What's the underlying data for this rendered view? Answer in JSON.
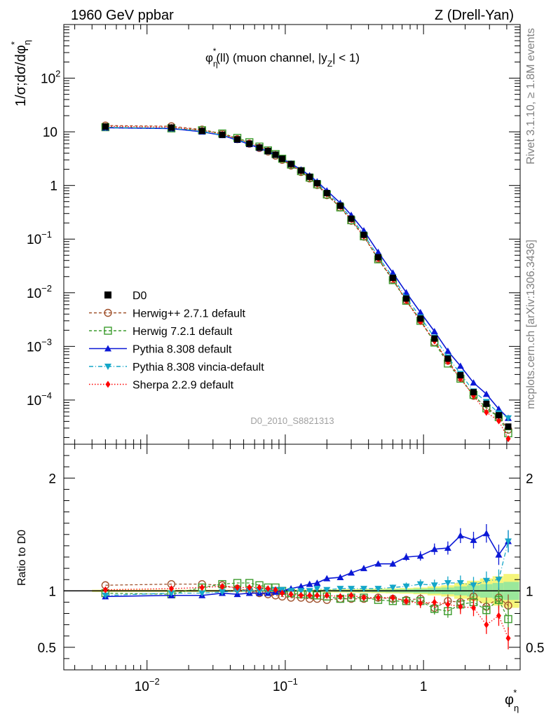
{
  "header": {
    "left": "1960 GeV ppbar",
    "right": "Z (Drell-Yan)"
  },
  "side_labels": {
    "rivet": "Rivet 3.1.10, ≥ 1.8M events",
    "mcplots": "mcplots.cern.ch [arXiv:1306.3436]"
  },
  "analysis_id": "D0_2010_S8821313",
  "chart_data": [
    {
      "type": "scatter",
      "panel": "main",
      "title": "φ*η(ll) (muon channel, |yZ| < 1)",
      "title_parts": {
        "phi": "φ",
        "sup": "*",
        "sub": "η",
        "rest": "(ll) (muon channel, |y",
        "zsub": "Z",
        "end": "| < 1)"
      },
      "ylabel": "1/σ;dσ/dφ*η",
      "ylabel_parts": {
        "main": "1/σ;dσ/dφ",
        "sup": "*",
        "sub": "η"
      },
      "xlabel_parts": {
        "main": "φ",
        "sup": "*",
        "sub": "η"
      },
      "x_scale": "log",
      "y_scale": "log",
      "xlim": [
        0.0025,
        5
      ],
      "ylim": [
        1.5e-05,
        1000
      ],
      "ytick_labels": [
        {
          "value": 0.0001,
          "base": "10",
          "exp": "−4"
        },
        {
          "value": 0.001,
          "base": "10",
          "exp": "−3"
        },
        {
          "value": 0.01,
          "base": "10",
          "exp": "−2"
        },
        {
          "value": 0.1,
          "base": "10",
          "exp": "−1"
        },
        {
          "value": 1,
          "base": "1",
          "exp": ""
        },
        {
          "value": 10,
          "base": "10",
          "exp": ""
        },
        {
          "value": 100,
          "base": "10",
          "exp": "2"
        }
      ],
      "legend_position": "center-left",
      "x": [
        0.005,
        0.015,
        0.025,
        0.035,
        0.045,
        0.055,
        0.065,
        0.075,
        0.085,
        0.095,
        0.11,
        0.13,
        0.15,
        0.17,
        0.2,
        0.25,
        0.3,
        0.37,
        0.47,
        0.6,
        0.75,
        0.95,
        1.2,
        1.5,
        1.85,
        2.3,
        2.85,
        3.5,
        4.1
      ],
      "series": [
        {
          "name": "D0",
          "style": "data",
          "color": "#000000",
          "values": [
            12.5,
            12.0,
            10.4,
            8.8,
            7.2,
            6.0,
            5.1,
            4.4,
            3.75,
            3.15,
            2.5,
            1.9,
            1.45,
            1.1,
            0.72,
            0.42,
            0.24,
            0.12,
            0.046,
            0.019,
            0.0078,
            0.0033,
            0.0014,
            0.00059,
            0.00029,
            0.00014,
            8.5e-05,
            5.2e-05,
            3.2e-05
          ]
        },
        {
          "name": "Herwig++ 2.7.1 default",
          "style": "open-circle-dashed",
          "color": "#a0522d",
          "values": [
            13.1,
            12.7,
            11.0,
            9.2,
            7.3,
            6.0,
            5.0,
            4.3,
            3.6,
            3.0,
            2.35,
            1.78,
            1.35,
            1.02,
            0.66,
            0.39,
            0.22,
            0.111,
            0.043,
            0.0176,
            0.0072,
            0.0031,
            0.0012,
            0.00054,
            0.00026,
            0.00012,
            7.3e-05,
            4.9e-05,
            2.8e-05
          ]
        },
        {
          "name": "Herwig 7.2.1 default",
          "style": "open-square-dashed",
          "color": "#3c9c2d",
          "values": [
            12.2,
            11.6,
            10.7,
            9.3,
            7.7,
            6.4,
            5.3,
            4.5,
            3.85,
            3.15,
            2.45,
            1.85,
            1.4,
            1.05,
            0.68,
            0.39,
            0.225,
            0.113,
            0.042,
            0.0172,
            0.0071,
            0.003,
            0.00118,
            0.00048,
            0.00025,
            0.000125,
            7e-05,
            4.8e-05,
            2.4e-05
          ]
        },
        {
          "name": "Pythia 8.308 default",
          "style": "filled-triangle-solid",
          "color": "#0b18d6",
          "values": [
            11.9,
            11.5,
            10.0,
            8.6,
            7.0,
            5.85,
            4.97,
            4.3,
            3.7,
            3.15,
            2.55,
            1.97,
            1.53,
            1.18,
            0.8,
            0.47,
            0.28,
            0.144,
            0.057,
            0.0235,
            0.0101,
            0.0043,
            0.0019,
            0.00082,
            0.00043,
            0.00021,
            0.000129,
            6.8e-05,
            4.6e-05
          ]
        },
        {
          "name": "Pythia 8.308 vincia-default",
          "style": "filled-down-triangle-dashdot",
          "color": "#14a6c8",
          "values": [
            12.0,
            11.7,
            10.2,
            8.7,
            7.2,
            6.0,
            5.1,
            4.4,
            3.78,
            3.17,
            2.5,
            1.91,
            1.46,
            1.12,
            0.73,
            0.43,
            0.245,
            0.123,
            0.047,
            0.0195,
            0.0081,
            0.0035,
            0.00147,
            0.00063,
            0.00031,
            0.000146,
            9.3e-05,
            5.7e-05,
            4.6e-05
          ]
        },
        {
          "name": "Sherpa 2.2.9 default",
          "style": "filled-diamond-dotted",
          "color": "#ff0000",
          "values": [
            12.7,
            12.2,
            10.7,
            9.1,
            7.4,
            6.2,
            5.25,
            4.5,
            3.8,
            3.1,
            2.42,
            1.83,
            1.39,
            1.05,
            0.69,
            0.4,
            0.23,
            0.113,
            0.043,
            0.0178,
            0.0071,
            0.0029,
            0.00126,
            0.00052,
            0.00025,
            0.00012,
            5.9e-05,
            4.1e-05,
            1.9e-05
          ]
        }
      ]
    },
    {
      "type": "line",
      "panel": "ratio",
      "ylabel": "Ratio to D0",
      "x_scale": "log",
      "xlim": [
        0.0025,
        5
      ],
      "ylim": [
        0.3,
        2.3
      ],
      "ytick_labels": [
        "0.5",
        "1",
        "2"
      ],
      "xtick_labels": [
        {
          "value": 0.01,
          "base": "10",
          "exp": "−2"
        },
        {
          "value": 0.1,
          "base": "10",
          "exp": "−1"
        },
        {
          "value": 1,
          "base": "1",
          "exp": ""
        }
      ],
      "reference_line": 1,
      "uncertainty_band": {
        "stat_color": "#9be89b",
        "total_color": "#f5f57a",
        "half_width": [
          0.01,
          0.01,
          0.01,
          0.01,
          0.01,
          0.01,
          0.01,
          0.01,
          0.01,
          0.01,
          0.01,
          0.012,
          0.012,
          0.013,
          0.014,
          0.015,
          0.016,
          0.018,
          0.02,
          0.022,
          0.025,
          0.03,
          0.04,
          0.05,
          0.07,
          0.09,
          0.11,
          0.13,
          0.15
        ],
        "stat_half_width": [
          0.005,
          0.005,
          0.005,
          0.005,
          0.005,
          0.005,
          0.005,
          0.005,
          0.005,
          0.005,
          0.005,
          0.006,
          0.006,
          0.006,
          0.007,
          0.008,
          0.009,
          0.01,
          0.012,
          0.014,
          0.016,
          0.02,
          0.025,
          0.03,
          0.04,
          0.05,
          0.06,
          0.07,
          0.08
        ]
      },
      "series": [
        {
          "name": "Herwig++ 2.7.1 default",
          "values": [
            1.05,
            1.06,
            1.06,
            1.05,
            1.02,
            1.0,
            0.98,
            0.97,
            0.96,
            0.95,
            0.94,
            0.94,
            0.93,
            0.93,
            0.92,
            0.93,
            0.93,
            0.93,
            0.94,
            0.93,
            0.92,
            0.93,
            0.85,
            0.91,
            0.9,
            0.95,
            0.86,
            0.94,
            0.87
          ]
        },
        {
          "name": "Herwig 7.2.1 default",
          "values": [
            0.98,
            0.97,
            1.03,
            1.06,
            1.07,
            1.07,
            1.05,
            1.03,
            1.03,
            1.0,
            0.98,
            0.97,
            0.97,
            0.96,
            0.95,
            0.93,
            0.94,
            0.94,
            0.92,
            0.91,
            0.91,
            0.91,
            0.84,
            0.82,
            0.88,
            0.9,
            0.83,
            0.92,
            0.75
          ]
        },
        {
          "name": "Pythia 8.308 default",
          "values": [
            0.95,
            0.96,
            0.96,
            0.98,
            0.97,
            0.98,
            0.98,
            0.98,
            0.99,
            1.0,
            1.02,
            1.04,
            1.06,
            1.07,
            1.11,
            1.12,
            1.16,
            1.2,
            1.24,
            1.24,
            1.3,
            1.31,
            1.37,
            1.38,
            1.49,
            1.45,
            1.51,
            1.32,
            1.44
          ]
        },
        {
          "name": "Pythia 8.308 vincia-default",
          "values": [
            0.96,
            0.98,
            0.98,
            0.99,
            1.0,
            1.0,
            1.0,
            1.0,
            1.01,
            1.01,
            1.0,
            1.0,
            1.0,
            1.02,
            1.01,
            1.02,
            1.02,
            1.02,
            1.02,
            1.03,
            1.04,
            1.06,
            1.05,
            1.07,
            1.07,
            1.05,
            1.09,
            1.1,
            1.44
          ]
        },
        {
          "name": "Sherpa 2.2.9 default",
          "values": [
            1.01,
            1.02,
            1.03,
            1.04,
            1.03,
            1.03,
            1.03,
            1.02,
            1.01,
            0.98,
            0.97,
            0.96,
            0.96,
            0.96,
            0.96,
            0.95,
            0.96,
            0.94,
            0.94,
            0.94,
            0.91,
            0.89,
            0.9,
            0.88,
            0.86,
            0.85,
            0.7,
            0.78,
            0.58
          ]
        }
      ]
    }
  ]
}
